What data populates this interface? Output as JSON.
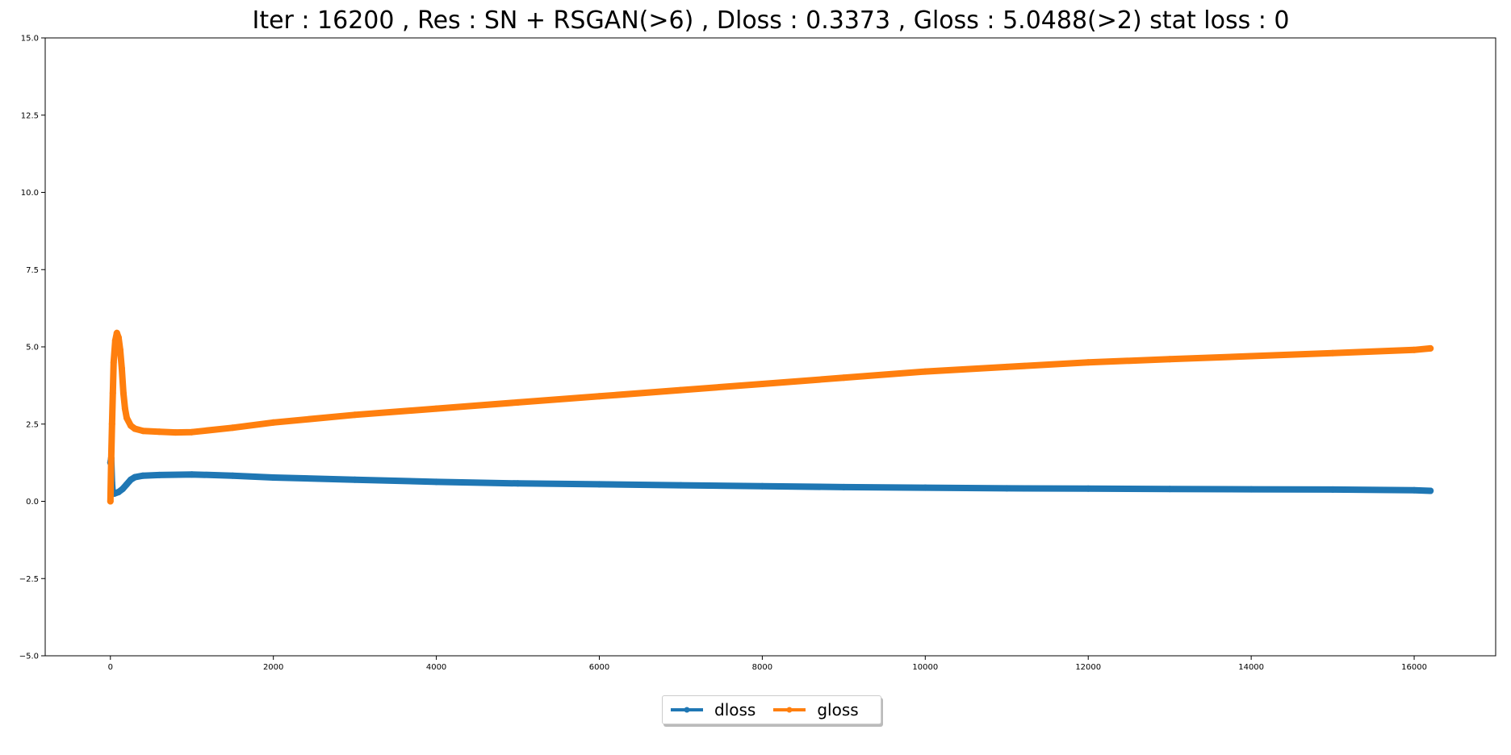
{
  "chart_data": {
    "type": "line",
    "title": "Iter : 16200 , Res : SN + RSGAN(>6) , Dloss : 0.3373 , Gloss : 5.0488(>2) stat loss : 0",
    "xlabel": "",
    "ylabel": "",
    "xlim": [
      -800,
      17000
    ],
    "ylim": [
      -5.0,
      15.0
    ],
    "x_ticks": [
      0,
      2000,
      4000,
      6000,
      8000,
      10000,
      12000,
      14000,
      16000
    ],
    "x_tick_labels": [
      "0",
      "2000",
      "4000",
      "6000",
      "8000",
      "10000",
      "12000",
      "14000",
      "16000"
    ],
    "y_ticks": [
      -5.0,
      -2.5,
      0.0,
      2.5,
      5.0,
      7.5,
      10.0,
      12.5,
      15.0
    ],
    "y_tick_labels": [
      "−5.0",
      "−2.5",
      "0.0",
      "2.5",
      "5.0",
      "7.5",
      "10.0",
      "12.5",
      "15.0"
    ],
    "grid": false,
    "legend_position": "bottom-center",
    "series": [
      {
        "name": "dloss",
        "color": "#1f77b4",
        "x": [
          0,
          10,
          20,
          30,
          50,
          100,
          150,
          200,
          250,
          300,
          400,
          600,
          1000,
          1500,
          2000,
          3000,
          4000,
          5000,
          6000,
          7000,
          8000,
          9000,
          10000,
          11000,
          12000,
          13000,
          14000,
          15000,
          16000,
          16200
        ],
        "y": [
          1.25,
          1.4,
          0.6,
          0.25,
          0.25,
          0.3,
          0.4,
          0.55,
          0.7,
          0.78,
          0.83,
          0.85,
          0.87,
          0.83,
          0.77,
          0.7,
          0.63,
          0.58,
          0.55,
          0.52,
          0.49,
          0.46,
          0.44,
          0.42,
          0.41,
          0.4,
          0.39,
          0.38,
          0.36,
          0.34
        ]
      },
      {
        "name": "gloss",
        "color": "#ff7f0e",
        "x": [
          0,
          10,
          20,
          30,
          40,
          60,
          80,
          100,
          120,
          140,
          160,
          180,
          200,
          250,
          300,
          400,
          600,
          800,
          1000,
          1500,
          2000,
          3000,
          4000,
          5000,
          6000,
          7000,
          8000,
          9000,
          10000,
          11000,
          12000,
          13000,
          14000,
          15000,
          16000,
          16200
        ],
        "y": [
          0.0,
          1.4,
          2.5,
          3.5,
          4.5,
          5.2,
          5.45,
          5.3,
          4.9,
          4.3,
          3.5,
          3.0,
          2.7,
          2.45,
          2.35,
          2.28,
          2.25,
          2.23,
          2.24,
          2.38,
          2.55,
          2.8,
          3.0,
          3.2,
          3.4,
          3.6,
          3.8,
          4.0,
          4.2,
          4.35,
          4.5,
          4.6,
          4.7,
          4.8,
          4.9,
          4.95
        ]
      }
    ]
  }
}
